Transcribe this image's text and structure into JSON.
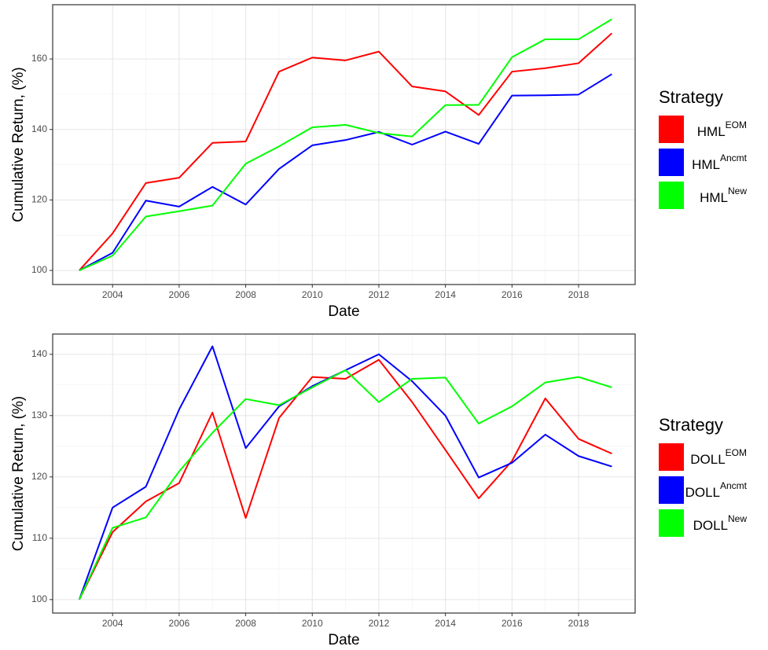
{
  "chart_data": [
    {
      "type": "line",
      "x_label": "Date",
      "y_label": "Cumulative Return, (%)",
      "legend_title": "Strategy",
      "legend": "right",
      "grid": true,
      "x": [
        2003,
        2004,
        2005,
        2006,
        2007,
        2008,
        2009,
        2010,
        2011,
        2012,
        2013,
        2014,
        2015,
        2016,
        2017,
        2018,
        2019
      ],
      "xlim": [
        2002.2,
        2019.7
      ],
      "xticks": [
        2004,
        2006,
        2008,
        2010,
        2012,
        2014,
        2016,
        2018
      ],
      "ylim": [
        96,
        175.4
      ],
      "yticks": [
        100,
        120,
        140,
        160
      ],
      "series": [
        {
          "name": "HML",
          "name_sup": "EOM",
          "color": "#ff0000",
          "values": [
            100,
            110.5,
            124.8,
            126.3,
            136.2,
            136.6,
            156.4,
            160.4,
            159.6,
            162.1,
            152.2,
            150.8,
            144.1,
            156.4,
            157.4,
            158.8,
            167.3
          ]
        },
        {
          "name": "HML",
          "name_sup": "Ancmt",
          "color": "#0000ff",
          "values": [
            100,
            105,
            119.8,
            118.1,
            123.7,
            118.7,
            128.8,
            135.5,
            137,
            139.3,
            135.7,
            139.4,
            135.9,
            149.6,
            149.7,
            149.9,
            155.7
          ]
        },
        {
          "name": "HML",
          "name_sup": "New",
          "color": "#00ff00",
          "values": [
            100,
            104.2,
            115.3,
            116.8,
            118.4,
            130.3,
            135.2,
            140.6,
            141.3,
            139,
            138,
            146.9,
            147,
            160.5,
            165.6,
            165.6,
            171.3
          ]
        }
      ]
    },
    {
      "type": "line",
      "x_label": "Date",
      "y_label": "Cumulative Return, (%)",
      "legend_title": "Strategy",
      "legend": "right",
      "grid": true,
      "x": [
        2003,
        2004,
        2005,
        2006,
        2007,
        2008,
        2009,
        2010,
        2011,
        2012,
        2013,
        2014,
        2015,
        2016,
        2017,
        2018,
        2019
      ],
      "xlim": [
        2002.2,
        2019.7
      ],
      "xticks": [
        2004,
        2006,
        2008,
        2010,
        2012,
        2014,
        2016,
        2018
      ],
      "ylim": [
        97.8,
        143.3
      ],
      "yticks": [
        100,
        110,
        120,
        130,
        140
      ],
      "series": [
        {
          "name": "DOLL",
          "name_sup": "EOM",
          "color": "#ff0000",
          "values": [
            100,
            111,
            116,
            119,
            130.5,
            113.3,
            129.6,
            136.3,
            136,
            139.1,
            132.2,
            124.4,
            116.5,
            122.6,
            132.8,
            126.2,
            123.8
          ]
        },
        {
          "name": "DOLL",
          "name_sup": "Ancmt",
          "color": "#0000ff",
          "values": [
            100,
            115,
            118.4,
            131,
            141.3,
            124.7,
            131.5,
            134.8,
            137.4,
            140,
            135.6,
            130,
            119.9,
            122.3,
            126.9,
            123.4,
            121.7
          ]
        },
        {
          "name": "DOLL",
          "name_sup": "New",
          "color": "#00ff00",
          "values": [
            100,
            111.7,
            113.4,
            120.9,
            127.2,
            132.7,
            131.7,
            134.6,
            137.4,
            132.2,
            136,
            136.2,
            128.7,
            131.5,
            135.4,
            136.3,
            134.6
          ]
        }
      ]
    }
  ]
}
